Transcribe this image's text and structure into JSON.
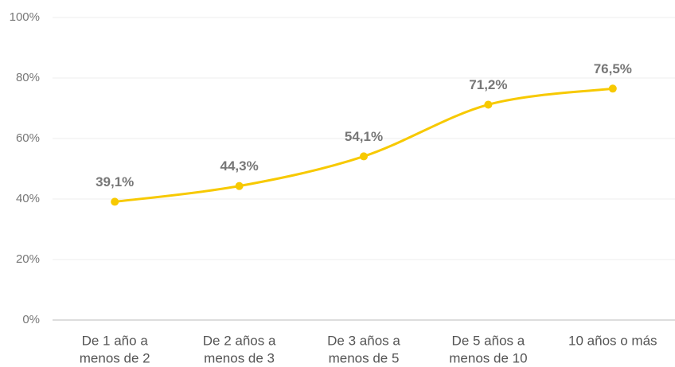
{
  "chart_data": {
    "type": "line",
    "categories": [
      [
        "De 1 año a",
        "menos de 2"
      ],
      [
        "De 2 años a",
        "menos de 3"
      ],
      [
        "De 3 años a",
        "menos de 5"
      ],
      [
        "De 5 años a",
        "menos de 10"
      ],
      [
        "10 años o más"
      ]
    ],
    "values": [
      39.1,
      44.3,
      54.1,
      71.2,
      76.5
    ],
    "value_labels": [
      "39,1%",
      "44,3%",
      "54,1%",
      "71,2%",
      "76,5%"
    ],
    "color": "#f7c900",
    "ylim": [
      0,
      100
    ],
    "yticks": [
      {
        "value": 0,
        "label": "0%"
      },
      {
        "value": 20,
        "label": "20%"
      },
      {
        "value": 40,
        "label": "40%"
      },
      {
        "value": 60,
        "label": "60%"
      },
      {
        "value": 80,
        "label": "80%"
      },
      {
        "value": 100,
        "label": "100%"
      }
    ],
    "grid": true
  }
}
